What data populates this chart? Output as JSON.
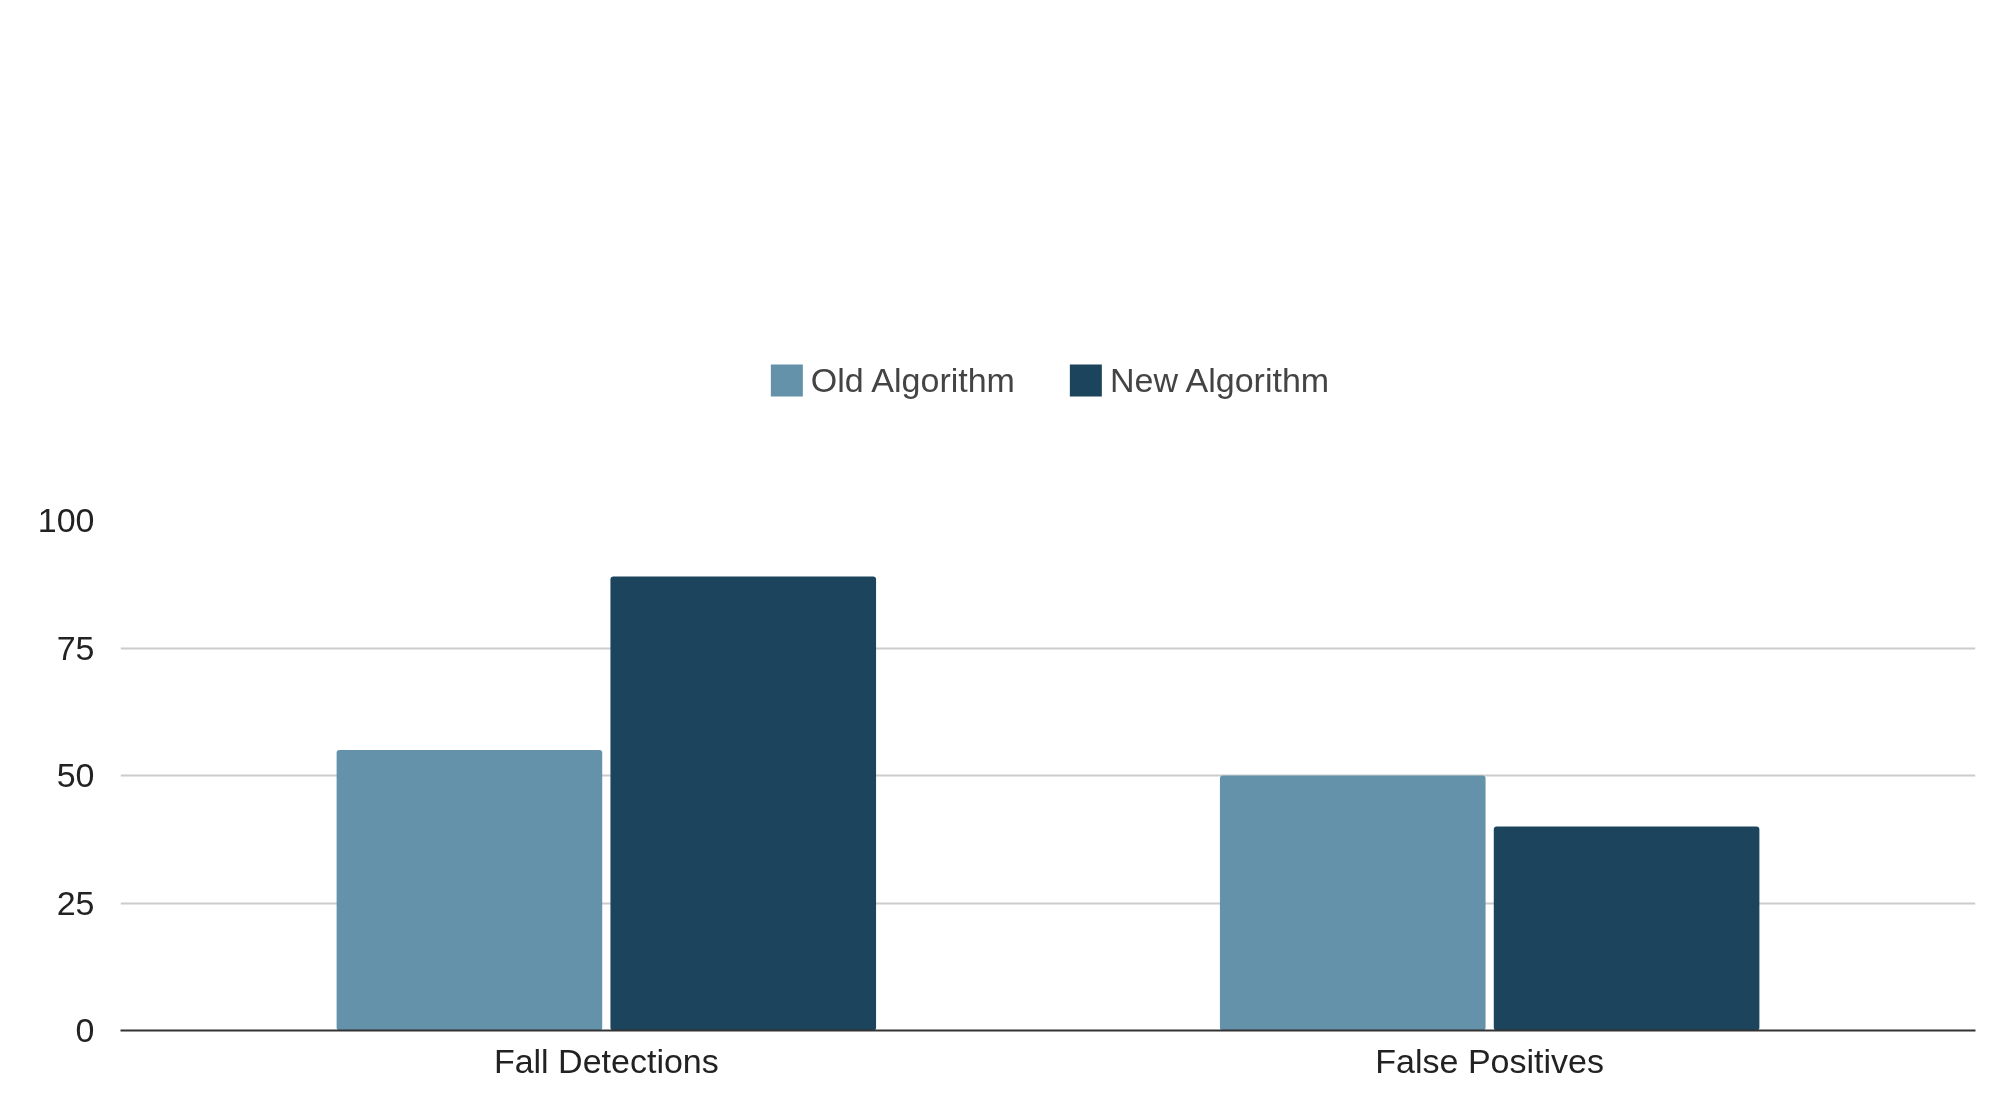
{
  "chart_data": {
    "type": "bar",
    "categories": [
      "Fall Detections",
      "False Positives"
    ],
    "series": [
      {
        "name": "Old Algorithm",
        "color": "#6592ab",
        "values": [
          55,
          50
        ]
      },
      {
        "name": "New Algorithm",
        "color": "#1c455d",
        "values": [
          89,
          40
        ]
      }
    ],
    "ylim": [
      0,
      100
    ],
    "yticks": [
      0,
      25,
      50,
      75,
      100
    ],
    "grid": "y",
    "legend": "top"
  }
}
